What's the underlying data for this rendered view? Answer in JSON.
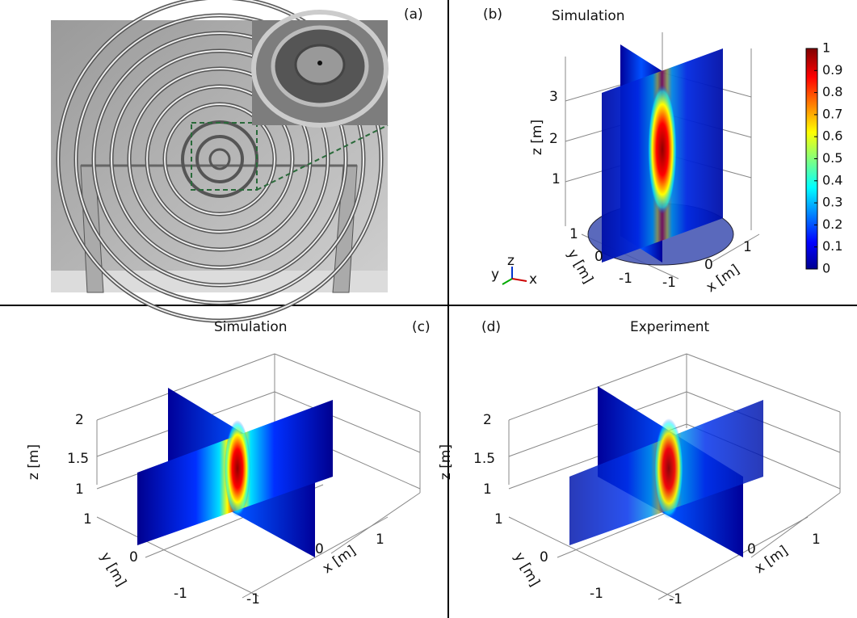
{
  "panels": [
    {
      "label": "(a)"
    },
    {
      "label": "(b)",
      "title": "Simulation",
      "z_label": "z [m]",
      "z_ticks": [
        "3",
        "2",
        "1"
      ],
      "y_label": "y [m]",
      "y_ticks": [
        "1",
        "0",
        "-1"
      ],
      "x_label": "x [m]",
      "x_ticks": [
        "-1",
        "0",
        "1"
      ],
      "triad": [
        "y",
        "z",
        "x"
      ],
      "colorbar": {
        "ticks": [
          0,
          0.1,
          0.2,
          0.3,
          0.4,
          0.5,
          0.6,
          0.7,
          0.8,
          0.9,
          1
        ]
      }
    },
    {
      "label": "(c)",
      "title": "Simulation",
      "z_label": "z [m]",
      "z_ticks": [
        "2",
        "1.5",
        "1"
      ],
      "y_label": "y [m]",
      "y_ticks": [
        "1",
        "0",
        "-1"
      ],
      "x_label": "x [m]",
      "x_ticks": [
        "-1",
        "0",
        "1"
      ]
    },
    {
      "label": "(d)",
      "title": "Experiment",
      "z_label": "z [m]",
      "z_ticks": [
        "2",
        "1.5",
        "1"
      ],
      "y_label": "y [m]",
      "y_ticks": [
        "1",
        "0",
        "-1"
      ],
      "x_label": "x [m]",
      "x_ticks": [
        "-1",
        "0",
        "1"
      ]
    }
  ]
}
